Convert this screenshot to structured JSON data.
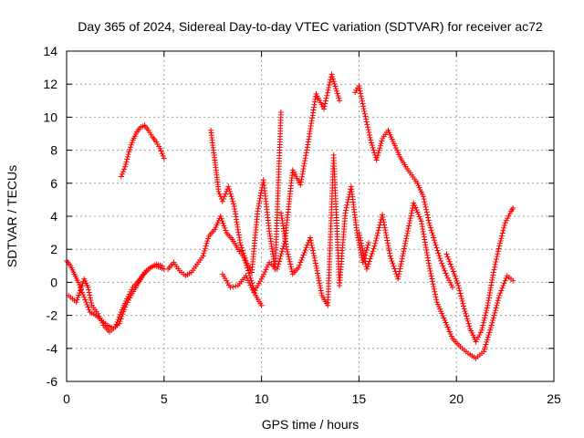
{
  "chart_data": {
    "type": "scatter",
    "title": "Day 365 of 2024, Sidereal Day-to-day VTEC variation (SDTVAR) for receiver ac72",
    "xlabel": "GPS time / hours",
    "ylabel": "SDTVAR / TECUs",
    "xlim": [
      0,
      25
    ],
    "ylim": [
      -6,
      14
    ],
    "xticks": [
      0,
      5,
      10,
      15,
      20,
      25
    ],
    "yticks": [
      -6,
      -4,
      -2,
      0,
      2,
      4,
      6,
      8,
      10,
      12,
      14
    ],
    "grid": true,
    "marker": "+",
    "color": "#ff0000",
    "series": [
      {
        "name": "early-0",
        "x": [
          0.0,
          0.2,
          0.4,
          0.6,
          0.8,
          1.0,
          1.2,
          1.5,
          1.8,
          2.1,
          2.4,
          2.7,
          3.0,
          3.3,
          3.6,
          3.9,
          4.2,
          4.5,
          4.8,
          5.0
        ],
        "y": [
          1.3,
          1.0,
          0.5,
          0.0,
          -0.6,
          -1.2,
          -1.8,
          -2.0,
          -2.3,
          -2.6,
          -2.8,
          -2.5,
          -1.5,
          -0.8,
          -0.2,
          0.4,
          0.8,
          1.0,
          0.9,
          0.8
        ]
      },
      {
        "name": "early-1",
        "x": [
          0.1,
          0.3,
          0.5,
          0.7,
          0.9,
          1.1,
          1.3,
          1.6,
          1.9,
          2.2,
          2.5,
          2.8,
          3.1,
          3.4,
          3.7,
          4.0,
          4.3,
          4.6,
          4.9
        ],
        "y": [
          -0.8,
          -1.0,
          -1.2,
          -0.5,
          0.2,
          -0.3,
          -1.4,
          -1.9,
          -2.6,
          -3.0,
          -2.7,
          -1.8,
          -1.0,
          -0.3,
          0.1,
          0.6,
          0.9,
          1.1,
          1.0
        ]
      },
      {
        "name": "arc-3h",
        "x": [
          2.8,
          3.0,
          3.2,
          3.4,
          3.6,
          3.8,
          4.0,
          4.2,
          4.4,
          4.6,
          4.8,
          5.0
        ],
        "y": [
          6.4,
          7.0,
          7.9,
          8.6,
          9.1,
          9.4,
          9.5,
          9.2,
          8.8,
          8.5,
          8.1,
          7.5
        ]
      },
      {
        "name": "mid-0",
        "x": [
          5.2,
          5.5,
          5.8,
          6.1,
          6.4,
          6.7,
          7.0,
          7.3,
          7.6,
          7.9,
          8.2,
          8.5,
          8.8,
          9.1,
          9.4,
          9.7,
          10.0
        ],
        "y": [
          0.8,
          1.2,
          0.7,
          0.4,
          0.6,
          1.1,
          1.6,
          2.8,
          3.2,
          4.0,
          3.0,
          2.6,
          2.0,
          1.5,
          0.4,
          -0.8,
          -1.4
        ]
      },
      {
        "name": "mid-1",
        "x": [
          7.4,
          7.5,
          7.6,
          7.7,
          7.8,
          8.0,
          8.3,
          8.6,
          8.9,
          9.2,
          9.5,
          9.8,
          10.1,
          10.4,
          10.7,
          11.0
        ],
        "y": [
          9.2,
          8.3,
          7.4,
          6.5,
          5.5,
          4.9,
          5.8,
          4.6,
          2.4,
          1.3,
          0.6,
          4.3,
          6.2,
          3.1,
          0.8,
          10.3
        ]
      },
      {
        "name": "mid-2",
        "x": [
          8.0,
          8.4,
          8.8,
          9.2,
          9.6,
          10.0,
          10.4,
          10.8,
          11.2,
          11.6,
          12.0,
          12.4,
          12.8,
          13.2,
          13.6,
          14.0
        ],
        "y": [
          0.5,
          -0.3,
          -0.2,
          0.4,
          -0.6,
          0.2,
          1.2,
          0.8,
          2.5,
          6.8,
          5.9,
          8.5,
          11.4,
          10.5,
          12.6,
          11.0
        ]
      },
      {
        "name": "mid-3",
        "x": [
          11.0,
          11.3,
          11.6,
          11.9,
          12.2,
          12.5,
          12.8,
          13.1,
          13.4,
          13.7,
          14.0,
          14.3,
          14.6,
          14.9,
          15.2,
          15.5
        ],
        "y": [
          4.2,
          2.0,
          0.5,
          0.9,
          1.8,
          2.7,
          1.0,
          -0.8,
          -1.4,
          7.7,
          -0.2,
          4.2,
          5.8,
          3.0,
          1.2,
          2.4
        ]
      },
      {
        "name": "late-0",
        "x": [
          14.8,
          15.0,
          15.3,
          15.6,
          15.9,
          16.2,
          16.5,
          16.8,
          17.1,
          17.4,
          17.7,
          18.0,
          18.3,
          18.6,
          18.9,
          19.2,
          19.5,
          19.8
        ],
        "y": [
          11.5,
          11.9,
          10.2,
          8.6,
          7.4,
          8.7,
          9.2,
          8.4,
          7.6,
          7.0,
          6.5,
          6.0,
          5.2,
          3.6,
          2.4,
          1.3,
          0.4,
          -0.3
        ]
      },
      {
        "name": "late-1",
        "x": [
          15.0,
          15.4,
          15.8,
          16.2,
          16.6,
          17.0,
          17.4,
          17.8,
          18.2,
          18.6,
          19.0,
          19.4,
          19.8,
          20.2,
          20.6,
          21.0,
          21.4,
          21.8,
          22.2,
          22.6,
          22.9
        ],
        "y": [
          3.0,
          0.8,
          2.2,
          4.1,
          1.6,
          0.2,
          2.5,
          4.8,
          3.7,
          1.0,
          -1.2,
          -2.3,
          -3.4,
          -3.9,
          -4.3,
          -4.6,
          -4.2,
          -2.6,
          -0.8,
          0.4,
          0.1
        ]
      },
      {
        "name": "late-2",
        "x": [
          19.5,
          19.8,
          20.1,
          20.4,
          20.7,
          21.0,
          21.3,
          21.6,
          21.9,
          22.2,
          22.5,
          22.8,
          22.9
        ],
        "y": [
          1.7,
          0.8,
          -0.2,
          -1.6,
          -2.8,
          -3.6,
          -2.9,
          -1.4,
          0.6,
          2.2,
          3.6,
          4.3,
          4.5
        ]
      }
    ]
  }
}
